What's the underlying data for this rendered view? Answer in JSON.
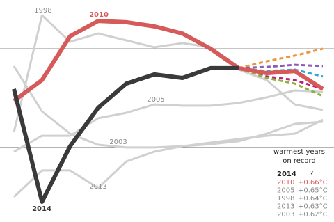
{
  "chart_data": {
    "type": "line",
    "categories": [
      null,
      null,
      null,
      null,
      null,
      null,
      null,
      null,
      null,
      null,
      null,
      null
    ],
    "ylim": [
      0,
      100
    ],
    "hlines": [
      80,
      32.7
    ],
    "series": [
      {
        "name": "1998",
        "color": "#d0d0d0",
        "values": [
          40,
          96,
          83.3,
          87.3,
          84,
          80.7,
          82.7,
          80.7,
          70,
          65,
          53.3,
          50.7
        ]
      },
      {
        "name": "2005",
        "color": "#d0d0d0",
        "values": [
          30.7,
          38.3,
          38.3,
          46.7,
          49.3,
          53.3,
          52.7,
          52.7,
          54,
          56.7,
          60,
          59.3
        ]
      },
      {
        "name": "2003",
        "color": "#d0d0d0",
        "values": [
          71.7,
          50,
          39.3,
          34,
          32.7,
          32.7,
          33.3,
          34.3,
          35.7,
          39.3,
          44,
          45
        ]
      },
      {
        "name": "2013",
        "color": "#d0d0d0",
        "values": [
          9,
          21.7,
          21.7,
          13.3,
          26,
          30.7,
          33.3,
          35,
          36.7,
          38.3,
          39.3,
          46
        ]
      },
      {
        "color": "#f0943c",
        "dashed": true,
        "values": [
          null,
          null,
          null,
          null,
          null,
          null,
          null,
          null,
          70.7,
          74,
          76.7,
          80
        ]
      },
      {
        "color": "#8a5cb8",
        "dashed": true,
        "values": [
          null,
          null,
          null,
          null,
          null,
          null,
          null,
          null,
          70.7,
          71.3,
          72.3,
          71.7
        ]
      },
      {
        "color": "#2aa7d6",
        "dashed": true,
        "values": [
          null,
          null,
          null,
          null,
          null,
          null,
          null,
          null,
          70.7,
          69.3,
          70,
          66.7
        ]
      },
      {
        "color": "#c0207a",
        "dashed": true,
        "values": [
          null,
          null,
          null,
          null,
          null,
          null,
          null,
          null,
          70.7,
          66.7,
          65,
          60.7
        ]
      },
      {
        "color": "#8db33a",
        "dashed": true,
        "values": [
          null,
          null,
          null,
          null,
          null,
          null,
          null,
          null,
          70.7,
          66,
          63.3,
          57.3
        ]
      },
      {
        "name": "2010",
        "color": "#d65a5a",
        "bold": true,
        "values": [
          55,
          65,
          86,
          93.3,
          92.7,
          90.7,
          87.3,
          80,
          70.7,
          68.3,
          69.3,
          60.7
        ]
      },
      {
        "name": "2014",
        "color": "#3a3a3a",
        "bold": true,
        "values": [
          60.7,
          6.7,
          33.3,
          51.7,
          63.3,
          67.7,
          66,
          70.7,
          70.7,
          null,
          null,
          null
        ]
      }
    ],
    "record_table": {
      "title": [
        "warmest years",
        "on record"
      ],
      "header": [
        "2014",
        "?"
      ],
      "rows": [
        [
          "2010",
          "+0.66°C"
        ],
        [
          "2005",
          "+0.65°C"
        ],
        [
          "1998",
          "+0.64°C"
        ],
        [
          "2013",
          "+0.63°C"
        ],
        [
          "2003",
          "+0.62°C"
        ]
      ]
    }
  }
}
